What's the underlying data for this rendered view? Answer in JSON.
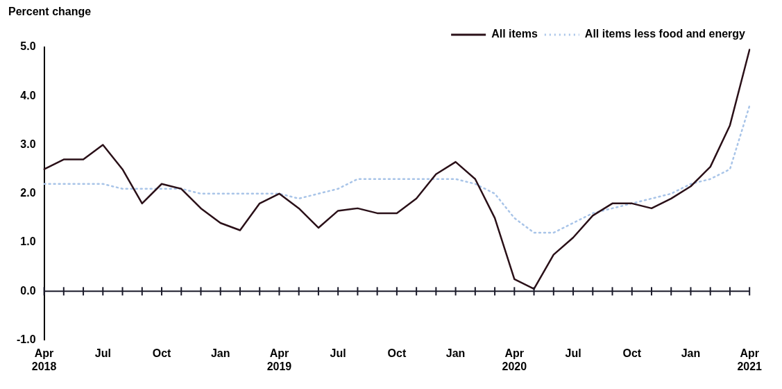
{
  "chart_data": {
    "type": "line",
    "ylabel": "Percent change",
    "categories": [
      "Apr 2018",
      null,
      null,
      "Jul",
      null,
      null,
      "Oct",
      null,
      null,
      "Jan",
      null,
      null,
      "Apr 2019",
      null,
      null,
      "Jul",
      null,
      null,
      "Oct",
      null,
      null,
      "Jan",
      null,
      null,
      "Apr 2020",
      null,
      null,
      "Jul",
      null,
      null,
      "Oct",
      null,
      null,
      "Jan",
      null,
      null,
      "Apr 2021"
    ],
    "series": [
      {
        "name": "All items",
        "color": "#2a1018",
        "line_style": "solid",
        "values": [
          2.5,
          2.7,
          2.7,
          3.0,
          2.5,
          1.8,
          2.2,
          2.1,
          1.7,
          1.4,
          1.25,
          1.8,
          2.0,
          1.7,
          1.3,
          1.65,
          1.7,
          1.6,
          1.6,
          1.9,
          2.4,
          2.65,
          2.3,
          1.5,
          0.25,
          0.05,
          0.75,
          1.1,
          1.55,
          1.8,
          1.8,
          1.7,
          1.9,
          2.15,
          2.55,
          3.4,
          4.95
        ]
      },
      {
        "name": "All items less food and energy",
        "color": "#a8c4e8",
        "line_style": "dotted",
        "values": [
          2.2,
          2.2,
          2.2,
          2.2,
          2.1,
          2.1,
          2.1,
          2.1,
          2.0,
          2.0,
          2.0,
          2.0,
          2.0,
          1.9,
          2.0,
          2.1,
          2.3,
          2.3,
          2.3,
          2.3,
          2.3,
          2.3,
          2.2,
          2.0,
          1.5,
          1.2,
          1.2,
          1.4,
          1.6,
          1.7,
          1.8,
          1.9,
          2.0,
          2.2,
          2.3,
          2.5,
          3.8
        ]
      }
    ],
    "ylim": [
      -1,
      5
    ],
    "yticks": [
      {
        "value": -1,
        "label": "-1.0"
      },
      {
        "value": 0,
        "label": "0.0"
      },
      {
        "value": 1,
        "label": "1.0"
      },
      {
        "value": 2,
        "label": "2.0"
      },
      {
        "value": 3,
        "label": "3.0"
      },
      {
        "value": 4,
        "label": "4.0"
      },
      {
        "value": 5,
        "label": "5.0"
      }
    ],
    "ref_lines": [
      {
        "axis": "y",
        "value": 0,
        "color": "#1a1a2a"
      }
    ],
    "legend": "top right",
    "grid": false,
    "marker": "none"
  }
}
